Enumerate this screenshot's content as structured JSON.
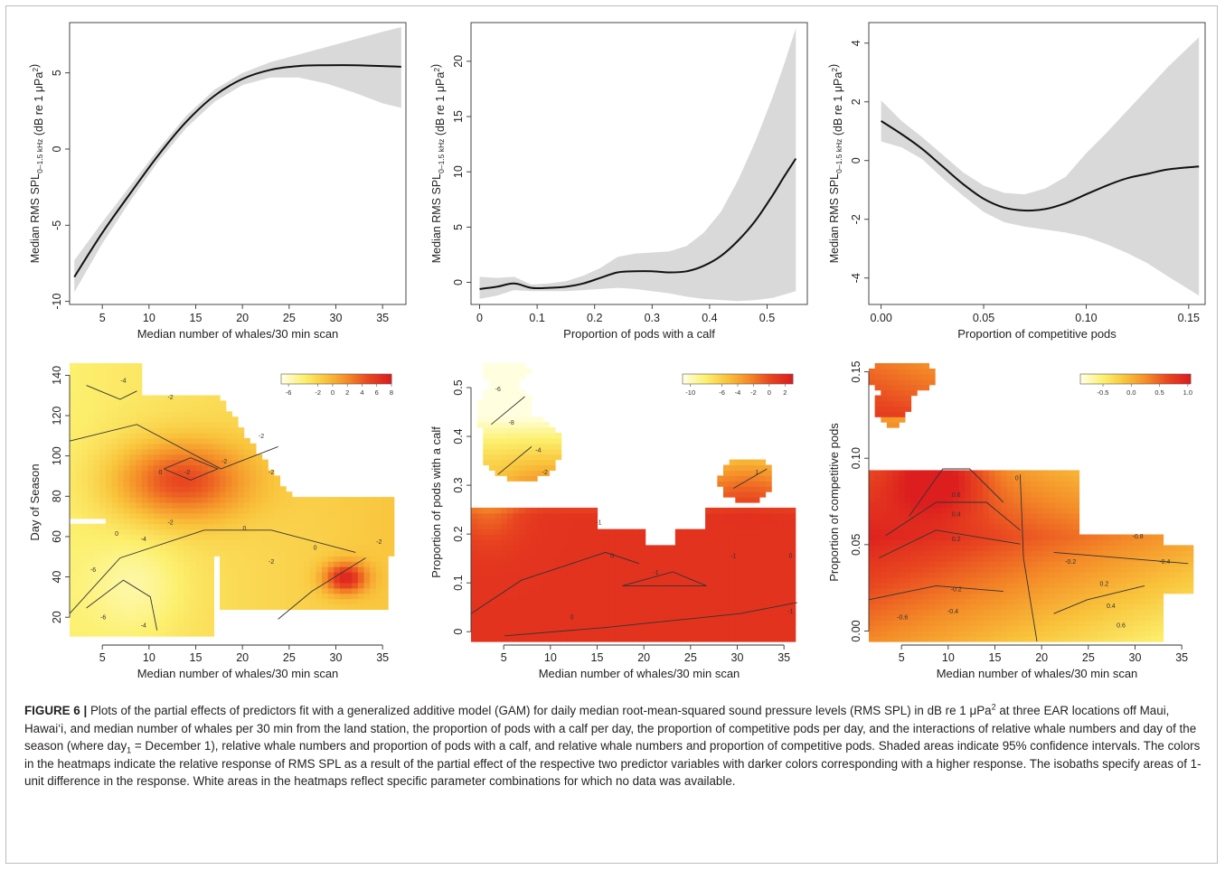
{
  "figure": {
    "caption_label": "FIGURE 6 |",
    "caption_parts": {
      "p1": " Plots of the partial effects of predictors fit with a generalized additive model (GAM) for daily median root-mean-squared sound pressure levels (RMS SPL) in dB re 1 ",
      "unit": "μPa",
      "sup": "2",
      "p2": " at three EAR locations off Maui, Hawai‘i, and median number of whales per 30 min from the land station, the proportion of pods with a calf per day, the proportion of competitive pods per day, and the interactions of relative whale numbers and day of the season (where day",
      "sub": "1",
      "p3": " = December 1), relative whale numbers and proportion of pods with a calf, and relative whale numbers and proportion of competitive pods. Shaded areas indicate 95% confidence intervals. The colors in the heatmaps indicate the relative response of RMS SPL as a result of the partial effect of the respective two predictor variables with darker colors corresponding with a higher response. The isobaths specify areas of 1-unit difference in the response. White areas in the heatmaps reflect specific parameter combinations for which no data was available."
    }
  },
  "chart_data": [
    {
      "type": "line",
      "xlabel": "Median number of whales/30 min scan",
      "ylabel": "Median RMS SPL0-1.5 kHz (dB re 1 μPa2)",
      "xlim": [
        1.5,
        37.5
      ],
      "ylim": [
        -10.2,
        8.3
      ],
      "xticks": [
        5,
        10,
        15,
        20,
        25,
        30,
        35
      ],
      "yticks": [
        -10,
        -5,
        0,
        5
      ],
      "x": [
        2,
        5,
        8,
        11,
        14,
        17,
        20,
        23,
        26,
        29,
        32,
        35,
        37
      ],
      "y": [
        -8.4,
        -5.5,
        -2.9,
        -0.4,
        1.8,
        3.5,
        4.6,
        5.2,
        5.45,
        5.5,
        5.5,
        5.45,
        5.4
      ],
      "lower": [
        -9.4,
        -6.2,
        -3.4,
        -0.8,
        1.4,
        3.1,
        4.2,
        4.7,
        4.7,
        4.3,
        3.7,
        3.0,
        2.7
      ],
      "upper": [
        -7.3,
        -4.8,
        -2.4,
        0.0,
        2.2,
        3.9,
        5.0,
        5.7,
        6.2,
        6.7,
        7.2,
        7.7,
        8.0
      ]
    },
    {
      "type": "line",
      "xlabel": "Proportion of pods with a calf",
      "ylabel": "Median RMS SPL0-1.5 kHz (dB re 1 μPa2)",
      "xlim": [
        -0.015,
        0.57
      ],
      "ylim": [
        -2.0,
        23.5
      ],
      "xticks": [
        0.0,
        0.1,
        0.2,
        0.3,
        0.4,
        0.5
      ],
      "yticks": [
        0,
        5,
        10,
        15,
        20
      ],
      "x": [
        0.0,
        0.03,
        0.06,
        0.09,
        0.12,
        0.15,
        0.18,
        0.21,
        0.24,
        0.27,
        0.3,
        0.33,
        0.36,
        0.39,
        0.42,
        0.45,
        0.48,
        0.51,
        0.53,
        0.55
      ],
      "y": [
        -0.6,
        -0.4,
        -0.1,
        -0.5,
        -0.5,
        -0.4,
        -0.1,
        0.4,
        0.9,
        1.0,
        1.0,
        0.9,
        1.0,
        1.5,
        2.4,
        3.8,
        5.6,
        7.9,
        9.6,
        11.2
      ],
      "lower": [
        -1.5,
        -1.2,
        -0.7,
        -0.8,
        -0.8,
        -0.8,
        -0.7,
        -0.6,
        -0.5,
        -0.6,
        -0.8,
        -1.0,
        -1.3,
        -1.5,
        -1.6,
        -1.7,
        -1.6,
        -1.4,
        -1.1,
        -0.8
      ],
      "upper": [
        0.5,
        0.4,
        0.5,
        -0.2,
        -0.1,
        0.1,
        0.6,
        1.3,
        2.3,
        2.6,
        2.7,
        2.8,
        3.3,
        4.5,
        6.4,
        9.3,
        12.8,
        16.8,
        19.8,
        23.0
      ]
    },
    {
      "type": "line",
      "xlabel": "Proportion of competitive pods",
      "ylabel": "Median RMS SPL0-1.5 kHz (dB re 1 μPa2)",
      "xlim": [
        -0.006,
        0.158
      ],
      "ylim": [
        -4.9,
        4.7
      ],
      "xticks": [
        0.0,
        0.05,
        0.1,
        0.15
      ],
      "xticklabels": [
        "0.00",
        "0.05",
        "0.10",
        "0.15"
      ],
      "yticks": [
        -4,
        -2,
        0,
        2,
        4
      ],
      "x": [
        0.0,
        0.01,
        0.02,
        0.03,
        0.04,
        0.05,
        0.06,
        0.07,
        0.08,
        0.09,
        0.1,
        0.11,
        0.12,
        0.13,
        0.14,
        0.155
      ],
      "y": [
        1.35,
        0.9,
        0.4,
        -0.2,
        -0.8,
        -1.3,
        -1.6,
        -1.7,
        -1.65,
        -1.45,
        -1.15,
        -0.85,
        -0.6,
        -0.45,
        -0.3,
        -0.2
      ],
      "lower": [
        0.65,
        0.45,
        0.05,
        -0.6,
        -1.2,
        -1.75,
        -2.1,
        -2.25,
        -2.35,
        -2.45,
        -2.6,
        -2.85,
        -3.15,
        -3.5,
        -3.95,
        -4.6
      ],
      "upper": [
        2.05,
        1.35,
        0.8,
        0.2,
        -0.4,
        -0.85,
        -1.1,
        -1.15,
        -0.95,
        -0.55,
        0.25,
        0.95,
        1.7,
        2.45,
        3.2,
        4.2
      ]
    },
    {
      "type": "heatmap",
      "xlabel": "Median number of whales/30 min scan",
      "ylabel": "Day of Season",
      "xlim": [
        1.5,
        37.5
      ],
      "ylim": [
        8,
        146
      ],
      "xticks": [
        5,
        10,
        15,
        20,
        25,
        30,
        35
      ],
      "yticks": [
        20,
        40,
        60,
        80,
        100,
        120,
        140
      ],
      "legend_ticks": [
        "-6",
        "-2",
        "0",
        "2",
        "4",
        "6",
        "8"
      ],
      "contour_labels": [
        "-4",
        "-2",
        "0",
        "-2",
        "-2",
        "-2",
        "-2",
        "0",
        "-2",
        "-4",
        "-6",
        "0",
        "-2",
        "-6",
        "-4",
        "0",
        "-2"
      ]
    },
    {
      "type": "heatmap",
      "xlabel": "Median number of whales/30 min scan",
      "ylabel": "Proportion of pods with a calf",
      "xlim": [
        1.5,
        37.5
      ],
      "ylim": [
        -0.02,
        0.55
      ],
      "xticks": [
        5,
        10,
        15,
        20,
        25,
        30,
        35
      ],
      "yticks": [
        0.0,
        0.1,
        0.2,
        0.3,
        0.4,
        0.5
      ],
      "legend_ticks": [
        "-10",
        "-6",
        "-4",
        "-2",
        "0",
        "2"
      ],
      "contour_labels": [
        "-6",
        "-8",
        "-4",
        "-2",
        "-1",
        "0",
        "-1",
        "0",
        "-1",
        "0",
        "1",
        "-1"
      ]
    },
    {
      "type": "heatmap",
      "xlabel": "Median number of whales/30 min scan",
      "ylabel": "Proportion of competitive pods",
      "xlim": [
        1.5,
        37.5
      ],
      "ylim": [
        -0.006,
        0.155
      ],
      "xticks": [
        5,
        10,
        15,
        20,
        25,
        30,
        35
      ],
      "yticks": [
        0.0,
        0.05,
        0.1,
        0.15
      ],
      "yticklabels": [
        "0.00",
        "0.05",
        "0.10",
        "0.15"
      ],
      "legend_ticks": [
        "-0.5",
        "0.0",
        "0.5",
        "1.0"
      ],
      "contour_labels": [
        "0.6",
        "0.4",
        "0.2",
        "0",
        "-0.2",
        "-0.4",
        "-0.6",
        "-0.8",
        "0.2",
        "0.4",
        "0.6",
        "-0.2",
        "-0.4"
      ]
    }
  ]
}
